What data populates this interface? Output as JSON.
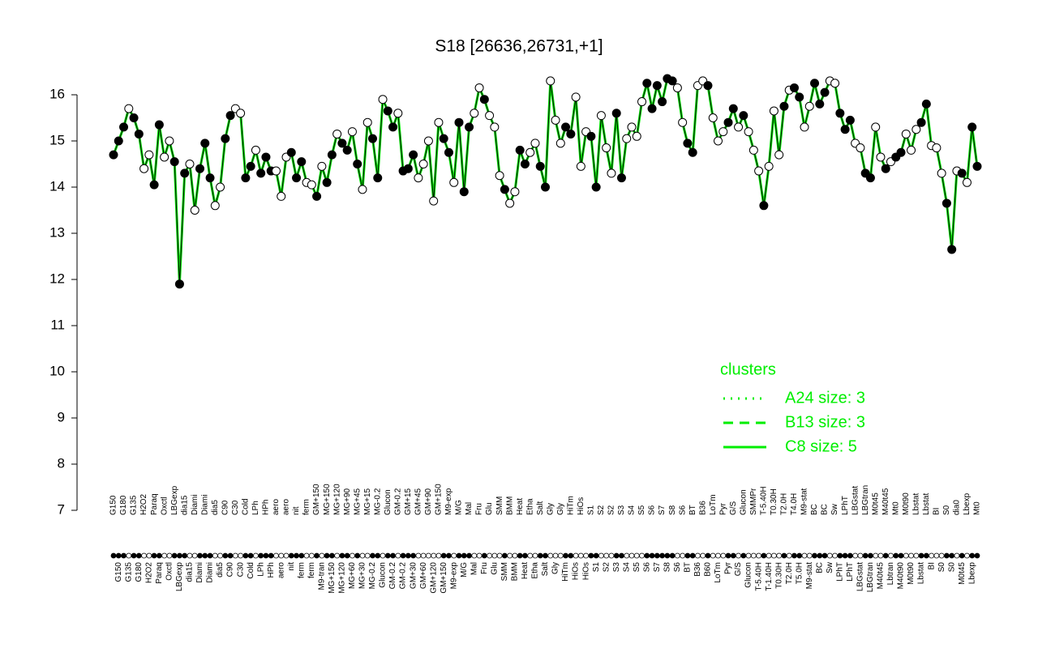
{
  "chart_data": {
    "type": "line",
    "title": "S18 [26636,26731,+1]",
    "ylim": [
      7,
      16
    ],
    "yticks": [
      7,
      8,
      9,
      10,
      11,
      12,
      13,
      14,
      15,
      16
    ],
    "line_color": "#000000",
    "cluster_color": "#00ee00",
    "legend_corner": "right",
    "legend": {
      "title": "clusters",
      "color": "#00ee00",
      "entries": [
        {
          "label": "A24 size: 3",
          "dash": "dotted"
        },
        {
          "label": "B13 size: 3",
          "dash": "dashed"
        },
        {
          "label": "C8 size: 5",
          "dash": "solid"
        }
      ]
    },
    "points": [
      {
        "label": "G150",
        "value": 14.7,
        "fill": "black"
      },
      {
        "label": "G150",
        "value": 15.0,
        "fill": "black"
      },
      {
        "label": "G180",
        "value": 15.3,
        "fill": "black"
      },
      {
        "label": "G135",
        "value": 15.7,
        "fill": "white"
      },
      {
        "label": "G135",
        "value": 15.5,
        "fill": "black"
      },
      {
        "label": "G180",
        "value": 15.15,
        "fill": "black"
      },
      {
        "label": "H2O2",
        "value": 14.4,
        "fill": "white"
      },
      {
        "label": "H2O2",
        "value": 14.7,
        "fill": "white"
      },
      {
        "label": "Paraq",
        "value": 14.05,
        "fill": "black"
      },
      {
        "label": "Paraq",
        "value": 15.35,
        "fill": "black"
      },
      {
        "label": "Oxctl",
        "value": 14.65,
        "fill": "white"
      },
      {
        "label": "Oxctl",
        "value": 15.0,
        "fill": "white"
      },
      {
        "label": "LBGexp",
        "value": 14.55,
        "fill": "black"
      },
      {
        "label": "LBGexp",
        "value": 11.9,
        "fill": "black"
      },
      {
        "label": "dia15",
        "value": 14.3,
        "fill": "black"
      },
      {
        "label": "dia15",
        "value": 14.5,
        "fill": "white"
      },
      {
        "label": "Diami",
        "value": 13.5,
        "fill": "white"
      },
      {
        "label": "Diami",
        "value": 14.4,
        "fill": "black"
      },
      {
        "label": "Diami",
        "value": 14.95,
        "fill": "black"
      },
      {
        "label": "Diami",
        "value": 14.2,
        "fill": "black"
      },
      {
        "label": "dia5",
        "value": 13.6,
        "fill": "white"
      },
      {
        "label": "dia5",
        "value": 14.0,
        "fill": "white"
      },
      {
        "label": "C90",
        "value": 15.05,
        "fill": "black"
      },
      {
        "label": "C90",
        "value": 15.55,
        "fill": "black"
      },
      {
        "label": "C30",
        "value": 15.7,
        "fill": "white"
      },
      {
        "label": "C30",
        "value": 15.6,
        "fill": "white"
      },
      {
        "label": "Cold",
        "value": 14.2,
        "fill": "black"
      },
      {
        "label": "Cold",
        "value": 14.45,
        "fill": "black"
      },
      {
        "label": "LPh",
        "value": 14.8,
        "fill": "white"
      },
      {
        "label": "LPh",
        "value": 14.3,
        "fill": "black"
      },
      {
        "label": "HPh",
        "value": 14.65,
        "fill": "black"
      },
      {
        "label": "HPh",
        "value": 14.35,
        "fill": "black"
      },
      {
        "label": "aero",
        "value": 14.35,
        "fill": "white"
      },
      {
        "label": "aero",
        "value": 13.8,
        "fill": "white"
      },
      {
        "label": "aero",
        "value": 14.65,
        "fill": "white"
      },
      {
        "label": "nit",
        "value": 14.75,
        "fill": "black"
      },
      {
        "label": "nit",
        "value": 14.2,
        "fill": "black"
      },
      {
        "label": "ferm",
        "value": 14.55,
        "fill": "black"
      },
      {
        "label": "ferm",
        "value": 14.1,
        "fill": "white"
      },
      {
        "label": "ferm",
        "value": 14.05,
        "fill": "white"
      },
      {
        "label": "GM+150",
        "value": 13.8,
        "fill": "black"
      },
      {
        "label": "M9-tran",
        "value": 14.45,
        "fill": "white"
      },
      {
        "label": "MG+150",
        "value": 14.1,
        "fill": "black"
      },
      {
        "label": "MG+150",
        "value": 14.7,
        "fill": "black"
      },
      {
        "label": "MG+120",
        "value": 15.15,
        "fill": "white"
      },
      {
        "label": "MG+120",
        "value": 14.95,
        "fill": "black"
      },
      {
        "label": "MG+90",
        "value": 14.8,
        "fill": "black"
      },
      {
        "label": "MG+60",
        "value": 15.2,
        "fill": "white"
      },
      {
        "label": "MG+45",
        "value": 14.5,
        "fill": "black"
      },
      {
        "label": "MG+30",
        "value": 13.95,
        "fill": "white"
      },
      {
        "label": "MG+15",
        "value": 15.4,
        "fill": "white"
      },
      {
        "label": "MG-0.2",
        "value": 15.05,
        "fill": "black"
      },
      {
        "label": "MG-0.2",
        "value": 14.2,
        "fill": "black"
      },
      {
        "label": "Glucon",
        "value": 15.9,
        "fill": "white"
      },
      {
        "label": "Glucon",
        "value": 15.65,
        "fill": "black"
      },
      {
        "label": "GM-0.2",
        "value": 15.3,
        "fill": "black"
      },
      {
        "label": "GM-0.2",
        "value": 15.6,
        "fill": "white"
      },
      {
        "label": "GM-0.2",
        "value": 14.35,
        "fill": "black"
      },
      {
        "label": "GM+15",
        "value": 14.4,
        "fill": "black"
      },
      {
        "label": "GM+30",
        "value": 14.7,
        "fill": "black"
      },
      {
        "label": "GM+45",
        "value": 14.2,
        "fill": "white"
      },
      {
        "label": "GM+60",
        "value": 14.5,
        "fill": "white"
      },
      {
        "label": "GM+90",
        "value": 15.0,
        "fill": "white"
      },
      {
        "label": "GM+120",
        "value": 13.7,
        "fill": "white"
      },
      {
        "label": "GM+150",
        "value": 15.4,
        "fill": "white"
      },
      {
        "label": "GM+150",
        "value": 15.05,
        "fill": "black"
      },
      {
        "label": "M9-exp",
        "value": 14.75,
        "fill": "black"
      },
      {
        "label": "M9-exp",
        "value": 14.1,
        "fill": "white"
      },
      {
        "label": "M/G",
        "value": 15.4,
        "fill": "black"
      },
      {
        "label": "M/G",
        "value": 13.9,
        "fill": "black"
      },
      {
        "label": "Mal",
        "value": 15.3,
        "fill": "black"
      },
      {
        "label": "Mal",
        "value": 15.6,
        "fill": "white"
      },
      {
        "label": "Fru",
        "value": 16.15,
        "fill": "white"
      },
      {
        "label": "Fru",
        "value": 15.9,
        "fill": "black"
      },
      {
        "label": "Glu",
        "value": 15.55,
        "fill": "white"
      },
      {
        "label": "Glu",
        "value": 15.3,
        "fill": "white"
      },
      {
        "label": "SMM",
        "value": 14.25,
        "fill": "white"
      },
      {
        "label": "SMM",
        "value": 13.95,
        "fill": "black"
      },
      {
        "label": "BMM",
        "value": 13.65,
        "fill": "white"
      },
      {
        "label": "BMM",
        "value": 13.9,
        "fill": "white"
      },
      {
        "label": "Heat",
        "value": 14.8,
        "fill": "black"
      },
      {
        "label": "Heat",
        "value": 14.5,
        "fill": "black"
      },
      {
        "label": "Etha",
        "value": 14.75,
        "fill": "white"
      },
      {
        "label": "Etha",
        "value": 14.95,
        "fill": "white"
      },
      {
        "label": "Salt",
        "value": 14.45,
        "fill": "black"
      },
      {
        "label": "Salt",
        "value": 14.0,
        "fill": "black"
      },
      {
        "label": "Gly",
        "value": 16.3,
        "fill": "white"
      },
      {
        "label": "Gly",
        "value": 15.45,
        "fill": "white"
      },
      {
        "label": "Gly",
        "value": 14.95,
        "fill": "white"
      },
      {
        "label": "HiTm",
        "value": 15.3,
        "fill": "black"
      },
      {
        "label": "HiTm",
        "value": 15.15,
        "fill": "black"
      },
      {
        "label": "HiOs",
        "value": 15.95,
        "fill": "white"
      },
      {
        "label": "HiOs",
        "value": 14.45,
        "fill": "white"
      },
      {
        "label": "HiOs",
        "value": 15.2,
        "fill": "white"
      },
      {
        "label": "S1",
        "value": 15.1,
        "fill": "black"
      },
      {
        "label": "S1",
        "value": 14.0,
        "fill": "black"
      },
      {
        "label": "S2",
        "value": 15.55,
        "fill": "white"
      },
      {
        "label": "S2",
        "value": 14.85,
        "fill": "white"
      },
      {
        "label": "S2",
        "value": 14.3,
        "fill": "white"
      },
      {
        "label": "S3",
        "value": 15.6,
        "fill": "black"
      },
      {
        "label": "S3",
        "value": 14.2,
        "fill": "black"
      },
      {
        "label": "S4",
        "value": 15.05,
        "fill": "white"
      },
      {
        "label": "S4",
        "value": 15.3,
        "fill": "white"
      },
      {
        "label": "S5",
        "value": 15.1,
        "fill": "white"
      },
      {
        "label": "S5",
        "value": 15.85,
        "fill": "white"
      },
      {
        "label": "S6",
        "value": 16.25,
        "fill": "black"
      },
      {
        "label": "S6",
        "value": 15.7,
        "fill": "black"
      },
      {
        "label": "S7",
        "value": 16.2,
        "fill": "black"
      },
      {
        "label": "S7",
        "value": 15.85,
        "fill": "black"
      },
      {
        "label": "S8",
        "value": 16.35,
        "fill": "black"
      },
      {
        "label": "S8",
        "value": 16.3,
        "fill": "black"
      },
      {
        "label": "S6",
        "value": 16.15,
        "fill": "white"
      },
      {
        "label": "S6",
        "value": 15.4,
        "fill": "white"
      },
      {
        "label": "BT",
        "value": 14.95,
        "fill": "black"
      },
      {
        "label": "BT",
        "value": 14.75,
        "fill": "black"
      },
      {
        "label": "B36",
        "value": 16.2,
        "fill": "white"
      },
      {
        "label": "B36",
        "value": 16.3,
        "fill": "white"
      },
      {
        "label": "B60",
        "value": 16.2,
        "fill": "black"
      },
      {
        "label": "LoTm",
        "value": 15.5,
        "fill": "white"
      },
      {
        "label": "LoTm",
        "value": 15.0,
        "fill": "white"
      },
      {
        "label": "Pyr",
        "value": 15.2,
        "fill": "white"
      },
      {
        "label": "Pyr",
        "value": 15.4,
        "fill": "black"
      },
      {
        "label": "G/S",
        "value": 15.7,
        "fill": "black"
      },
      {
        "label": "G/S",
        "value": 15.3,
        "fill": "white"
      },
      {
        "label": "Glucon",
        "value": 15.55,
        "fill": "black"
      },
      {
        "label": "Glucon",
        "value": 15.2,
        "fill": "white"
      },
      {
        "label": "SMMPr",
        "value": 14.8,
        "fill": "white"
      },
      {
        "label": "T-5.40H",
        "value": 14.35,
        "fill": "white"
      },
      {
        "label": "T-5.40H",
        "value": 13.6,
        "fill": "black"
      },
      {
        "label": "T-1.40H",
        "value": 14.45,
        "fill": "white"
      },
      {
        "label": "T0.30H",
        "value": 15.65,
        "fill": "white"
      },
      {
        "label": "T0.30H",
        "value": 14.7,
        "fill": "white"
      },
      {
        "label": "T2.0H",
        "value": 15.75,
        "fill": "black"
      },
      {
        "label": "T2.0H",
        "value": 16.1,
        "fill": "white"
      },
      {
        "label": "T4.0H",
        "value": 16.15,
        "fill": "black"
      },
      {
        "label": "T5.0H",
        "value": 15.95,
        "fill": "black"
      },
      {
        "label": "M9-stat",
        "value": 15.3,
        "fill": "white"
      },
      {
        "label": "M9-stat",
        "value": 15.75,
        "fill": "white"
      },
      {
        "label": "BC",
        "value": 16.25,
        "fill": "black"
      },
      {
        "label": "BC",
        "value": 15.8,
        "fill": "black"
      },
      {
        "label": "BC",
        "value": 16.05,
        "fill": "black"
      },
      {
        "label": "Sw",
        "value": 16.3,
        "fill": "white"
      },
      {
        "label": "Sw",
        "value": 16.25,
        "fill": "white"
      },
      {
        "label": "LPhT",
        "value": 15.6,
        "fill": "black"
      },
      {
        "label": "LPhT",
        "value": 15.25,
        "fill": "black"
      },
      {
        "label": "LPhT",
        "value": 15.45,
        "fill": "black"
      },
      {
        "label": "LBGstat",
        "value": 14.95,
        "fill": "white"
      },
      {
        "label": "LBGstat",
        "value": 14.85,
        "fill": "white"
      },
      {
        "label": "LBGtran",
        "value": 14.3,
        "fill": "black"
      },
      {
        "label": "LBGtran",
        "value": 14.2,
        "fill": "black"
      },
      {
        "label": "M0t45",
        "value": 15.3,
        "fill": "white"
      },
      {
        "label": "M40t45",
        "value": 14.65,
        "fill": "white"
      },
      {
        "label": "M40t45",
        "value": 14.4,
        "fill": "black"
      },
      {
        "label": "Lbtran",
        "value": 14.55,
        "fill": "white"
      },
      {
        "label": "Mt0",
        "value": 14.65,
        "fill": "black"
      },
      {
        "label": "M40t90",
        "value": 14.75,
        "fill": "black"
      },
      {
        "label": "M0t90",
        "value": 15.15,
        "fill": "white"
      },
      {
        "label": "M0t90",
        "value": 14.8,
        "fill": "white"
      },
      {
        "label": "Lbstat",
        "value": 15.25,
        "fill": "white"
      },
      {
        "label": "Lbstat",
        "value": 15.4,
        "fill": "black"
      },
      {
        "label": "Lbstat",
        "value": 15.8,
        "fill": "black"
      },
      {
        "label": "BI",
        "value": 14.9,
        "fill": "white"
      },
      {
        "label": "BI",
        "value": 14.85,
        "fill": "white"
      },
      {
        "label": "S0",
        "value": 14.3,
        "fill": "white"
      },
      {
        "label": "S0",
        "value": 13.65,
        "fill": "black"
      },
      {
        "label": "S0",
        "value": 12.65,
        "fill": "black"
      },
      {
        "label": "dia0",
        "value": 14.35,
        "fill": "white"
      },
      {
        "label": "M0t45",
        "value": 14.3,
        "fill": "black"
      },
      {
        "label": "Lbexp",
        "value": 14.1,
        "fill": "white"
      },
      {
        "label": "Lbexp",
        "value": 15.3,
        "fill": "black"
      },
      {
        "label": "Mt0",
        "value": 14.45,
        "fill": "black"
      }
    ]
  }
}
